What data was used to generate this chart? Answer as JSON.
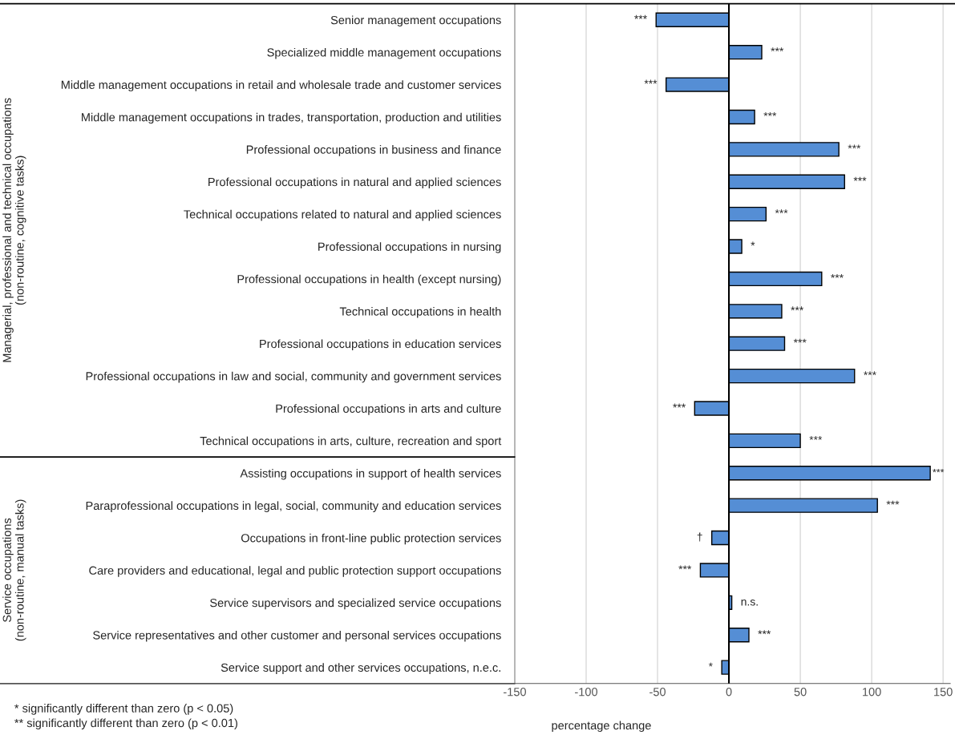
{
  "chart_data": {
    "type": "bar",
    "orientation": "horizontal",
    "xlabel": "percentage change",
    "categories": [
      "Senior management occupations",
      "Specialized middle management occupations",
      "Middle management occupations in retail and wholesale trade and customer services",
      "Middle management occupations in trades, transportation, production and utilities",
      "Professional occupations in business and finance",
      "Professional occupations in natural and applied sciences",
      "Technical occupations related to natural and applied sciences",
      "Professional occupations in nursing",
      "Professional occupations in health (except nursing)",
      "Technical occupations in health",
      "Professional occupations in education services",
      "Professional occupations in law and social, community and government services",
      "Professional occupations in arts and culture",
      "Technical occupations in arts, culture, recreation and sport",
      "Assisting occupations in support of health services",
      "Paraprofessional occupations in legal, social, community and education services",
      "Occupations in front-line public protection services",
      "Care providers and educational, legal and public protection support occupations",
      "Service supervisors and specialized service occupations",
      "Service representatives and other customer and personal services occupations",
      "Service support and other services occupations, n.e.c."
    ],
    "values": [
      -51,
      23,
      -44,
      18,
      77,
      81,
      26,
      9,
      65,
      37,
      39,
      88,
      -24,
      50,
      141,
      104,
      -12,
      -20,
      2,
      14,
      -5
    ],
    "value_labels": [
      "***",
      "***",
      "***",
      "***",
      "***",
      "***",
      "***",
      "*",
      "***",
      "***",
      "***",
      "***",
      "***",
      "***",
      "***",
      "***",
      "†",
      "***",
      "n.s.",
      "***",
      "*"
    ],
    "color": "#558ed5",
    "xlim": [
      -150,
      155
    ],
    "xticks": [
      -150,
      -100,
      -50,
      0,
      50,
      100,
      150
    ],
    "grid": "x",
    "annotations": [
      "Managerial, professional and technical occupations\n(non-routine, cognitive tasks)",
      "Service occupations\n(non-routine, manual tasks)",
      "* significantly different than zero (p < 0.05)",
      "** significantly different than zero (p < 0.01)"
    ]
  }
}
